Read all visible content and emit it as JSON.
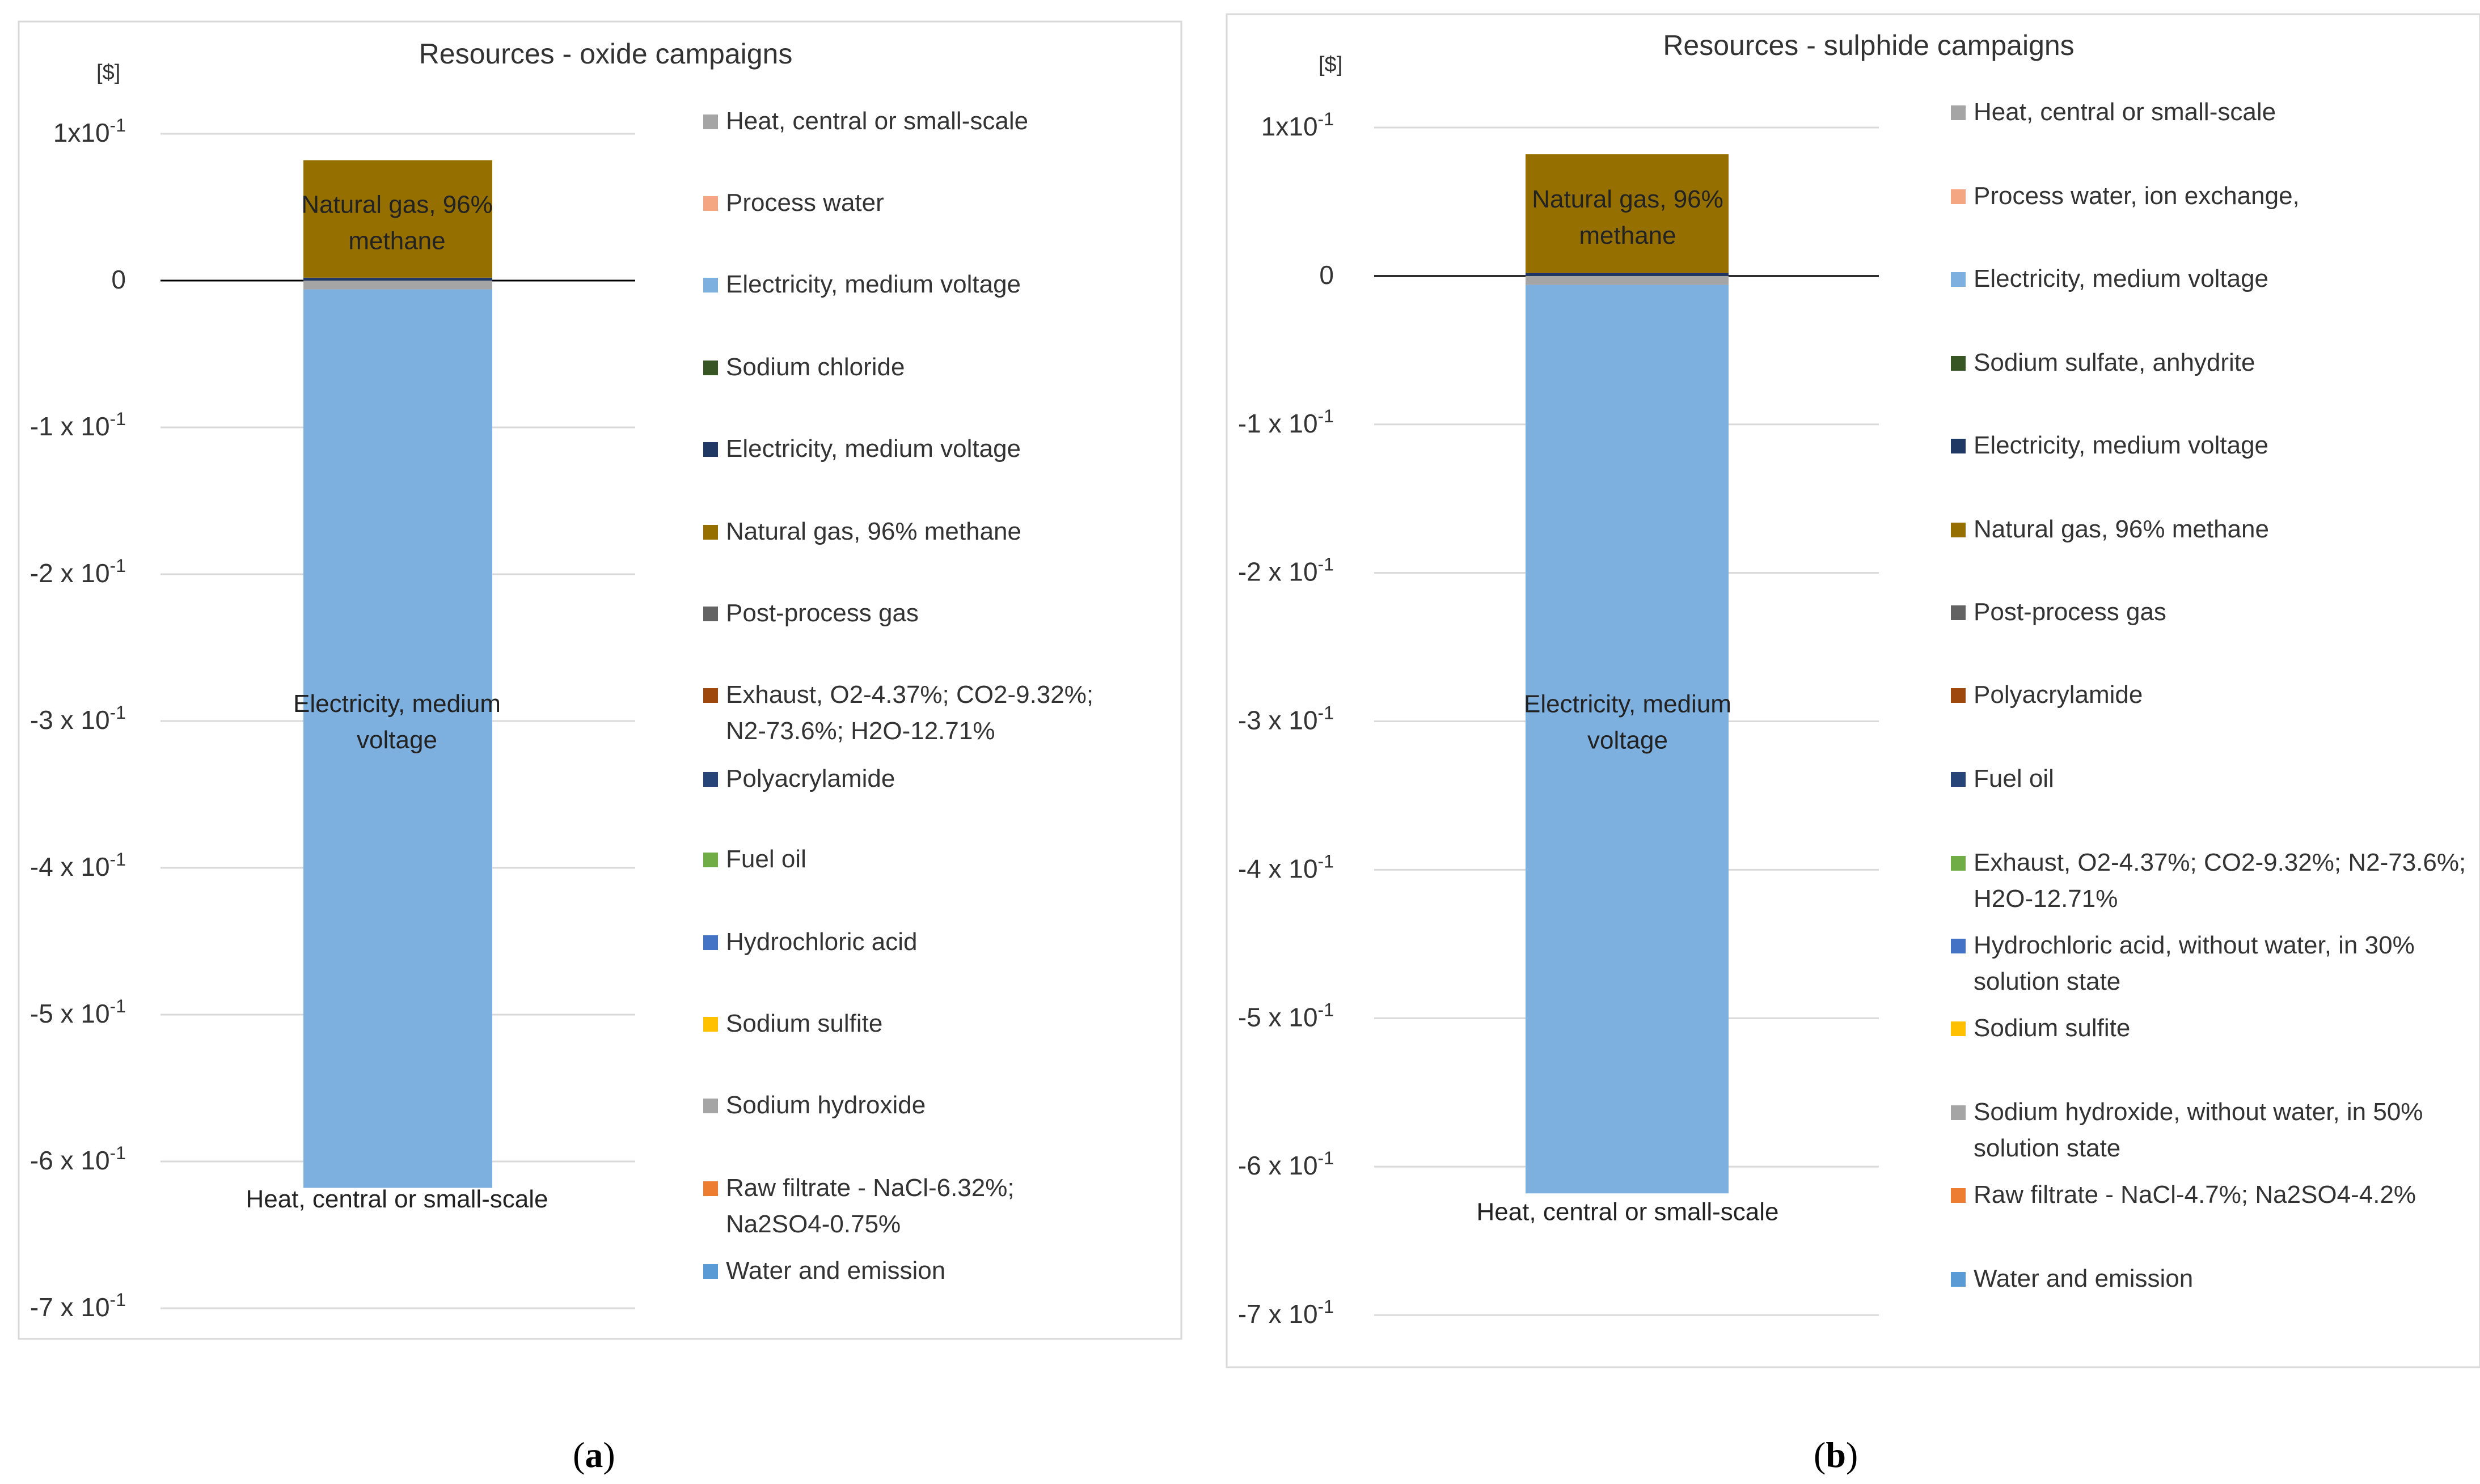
{
  "chart_data": [
    {
      "type": "bar",
      "stacked": true,
      "title": "Resources - oxide campaigns",
      "ylabel": "[$]",
      "ylim": [
        -0.7,
        0.1
      ],
      "ytick_values": [
        0.1,
        0,
        -0.1,
        -0.2,
        -0.3,
        -0.4,
        -0.5,
        -0.6,
        -0.7
      ],
      "ytick_mant": [
        "1",
        "0",
        "-1",
        "-2",
        "-3",
        "-4",
        "-5",
        "-6",
        "-7"
      ],
      "ytick_sep": [
        "x",
        "",
        " x ",
        " x ",
        " x ",
        " x ",
        " x ",
        " x ",
        " x "
      ],
      "ytick_base": "10",
      "ytick_exp": "-1",
      "legend_position": "right",
      "series": [
        {
          "name": "Heat, central or small-scale",
          "color": "#A5A5A5",
          "value": -0.006
        },
        {
          "name": "Process water",
          "color": "#F4A582",
          "value": 0.0
        },
        {
          "name": "Electricity, medium voltage",
          "color": "#7EB0DF",
          "value": -0.612
        },
        {
          "name": "Sodium chloride",
          "color": "#375623",
          "value": 0.0
        },
        {
          "name": "Electricity, medium voltage",
          "color": "#203864",
          "value": 0.002
        },
        {
          "name": "Natural gas, 96% methane",
          "color": "#957000",
          "value": 0.08
        },
        {
          "name": "Post-process gas",
          "color": "#636363",
          "value": 0.0
        },
        {
          "name": "Exhaust, O2-4.37%; CO2-9.32%; N2-73.6%; H2O-12.71%",
          "color": "#9E480E",
          "value": 0.0
        },
        {
          "name": "Polyacrylamide",
          "color": "#264478",
          "value": 0.0
        },
        {
          "name": "Fuel oil",
          "color": "#70AD47",
          "value": 0.0
        },
        {
          "name": "Hydrochloric acid",
          "color": "#4472C4",
          "value": 0.0
        },
        {
          "name": "Sodium sulfite",
          "color": "#FFC000",
          "value": 0.0
        },
        {
          "name": "Sodium hydroxide",
          "color": "#A5A5A5",
          "value": 0.0
        },
        {
          "name": "Raw filtrate - NaCl-6.32%; Na2SO4-0.75%",
          "color": "#ED7D31",
          "value": 0.0
        },
        {
          "name": "Water and emission",
          "color": "#5B9BD5",
          "value": 0.0
        }
      ],
      "bar_labels": [
        {
          "text": "Natural gas, 96% methane",
          "value": 0.04
        },
        {
          "text": "Electricity, medium voltage",
          "value": -0.3
        },
        {
          "text": "Heat, central or small-scale",
          "value": -0.625
        }
      ]
    },
    {
      "type": "bar",
      "stacked": true,
      "title": "Resources - sulphide campaigns",
      "ylabel": "[$]",
      "ylim": [
        -0.7,
        0.1
      ],
      "ytick_values": [
        0.1,
        0,
        -0.1,
        -0.2,
        -0.3,
        -0.4,
        -0.5,
        -0.6,
        -0.7
      ],
      "ytick_mant": [
        "1",
        "0",
        "-1",
        "-2",
        "-3",
        "-4",
        "-5",
        "-6",
        "-7"
      ],
      "ytick_sep": [
        "x",
        "",
        " x ",
        " x ",
        " x ",
        " x ",
        " x ",
        " x ",
        " x "
      ],
      "ytick_base": "10",
      "ytick_exp": "-1",
      "legend_position": "right",
      "series": [
        {
          "name": "Heat, central or small-scale",
          "color": "#A5A5A5",
          "value": -0.006
        },
        {
          "name": "Process water, ion exchange,",
          "color": "#F4A582",
          "value": 0.0
        },
        {
          "name": "Electricity, medium voltage",
          "color": "#7EB0DF",
          "value": -0.612
        },
        {
          "name": "Sodium sulfate, anhydrite",
          "color": "#375623",
          "value": 0.0
        },
        {
          "name": "Electricity, medium voltage",
          "color": "#203864",
          "value": 0.002
        },
        {
          "name": "Natural gas, 96% methane",
          "color": "#957000",
          "value": 0.08
        },
        {
          "name": "Post-process gas",
          "color": "#636363",
          "value": 0.0
        },
        {
          "name": "Polyacrylamide",
          "color": "#9E480E",
          "value": 0.0
        },
        {
          "name": "Fuel oil",
          "color": "#264478",
          "value": 0.0
        },
        {
          "name": "Exhaust, O2-4.37%; CO2-9.32%; N2-73.6%; H2O-12.71%",
          "color": "#70AD47",
          "value": 0.0
        },
        {
          "name": "Hydrochloric acid, without water, in 30% solution state",
          "color": "#4472C4",
          "value": 0.0
        },
        {
          "name": "Sodium sulfite",
          "color": "#FFC000",
          "value": 0.0
        },
        {
          "name": "Sodium hydroxide, without water, in 50% solution state",
          "color": "#A5A5A5",
          "value": 0.0
        },
        {
          "name": "Raw filtrate - NaCl-4.7%; Na2SO4-4.2%",
          "color": "#ED7D31",
          "value": 0.0
        },
        {
          "name": "Water and emission",
          "color": "#5B9BD5",
          "value": 0.0
        }
      ],
      "bar_labels": [
        {
          "text": "Natural gas, 96% methane",
          "value": 0.04
        },
        {
          "text": "Electricity, medium voltage",
          "value": -0.3
        },
        {
          "text": "Heat, central or small-scale",
          "value": -0.63
        }
      ]
    }
  ],
  "captions": [
    {
      "open": "(",
      "letter": "a",
      "close": ")"
    },
    {
      "open": "(",
      "letter": "b",
      "close": ")"
    }
  ]
}
